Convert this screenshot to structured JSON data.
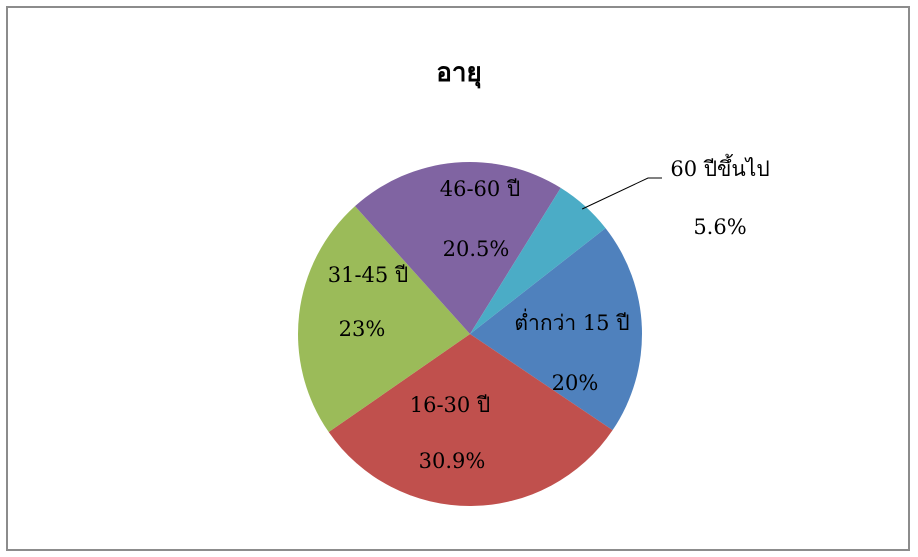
{
  "chart_data": {
    "type": "pie",
    "title": "อายุ",
    "slices": [
      {
        "label": "ต่ำกว่า 15 ปี",
        "value": 20,
        "value_label": "20%",
        "color": "#4f81bd"
      },
      {
        "label": "16-30 ปี",
        "value": 30.9,
        "value_label": "30.9%",
        "color": "#c0504d"
      },
      {
        "label": "31-45 ปี",
        "value": 23,
        "value_label": "23%",
        "color": "#9bbb59"
      },
      {
        "label": "46-60 ปี",
        "value": 20.5,
        "value_label": "20.5%",
        "color": "#8064a2"
      },
      {
        "label": "60 ปีขึ้นไป",
        "value": 5.6,
        "value_label": "5.6%",
        "color": "#4bacc6"
      }
    ]
  }
}
